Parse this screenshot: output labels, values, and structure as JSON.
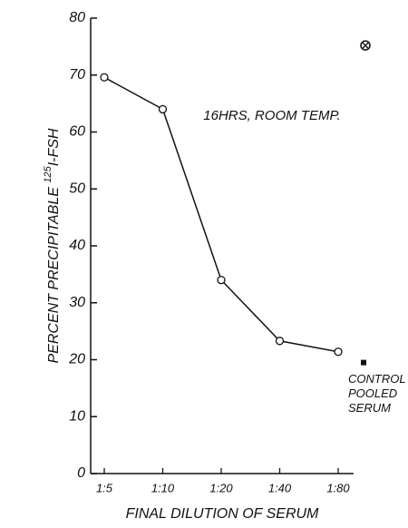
{
  "chart_data": {
    "type": "line",
    "xlabel": "FINAL DILUTION OF SERUM",
    "ylabel": [
      "PERCENT PRECIPITABLE ",
      "125",
      "I-FSH"
    ],
    "annotation": "16HRS, ROOM TEMP.",
    "categories": [
      "1:5",
      "1:10",
      "1:20",
      "1:40",
      "1:80"
    ],
    "values": [
      69.6,
      64,
      34,
      23.3,
      21.4
    ],
    "color": "#111111",
    "ylim": [
      0,
      80
    ],
    "yticks": [
      0,
      10,
      20,
      30,
      40,
      50,
      60,
      70,
      80
    ],
    "control": {
      "label": [
        "CONTROL",
        "POOLED",
        "SERUM"
      ],
      "value": 19.5
    },
    "extra_marker": 75.2
  }
}
